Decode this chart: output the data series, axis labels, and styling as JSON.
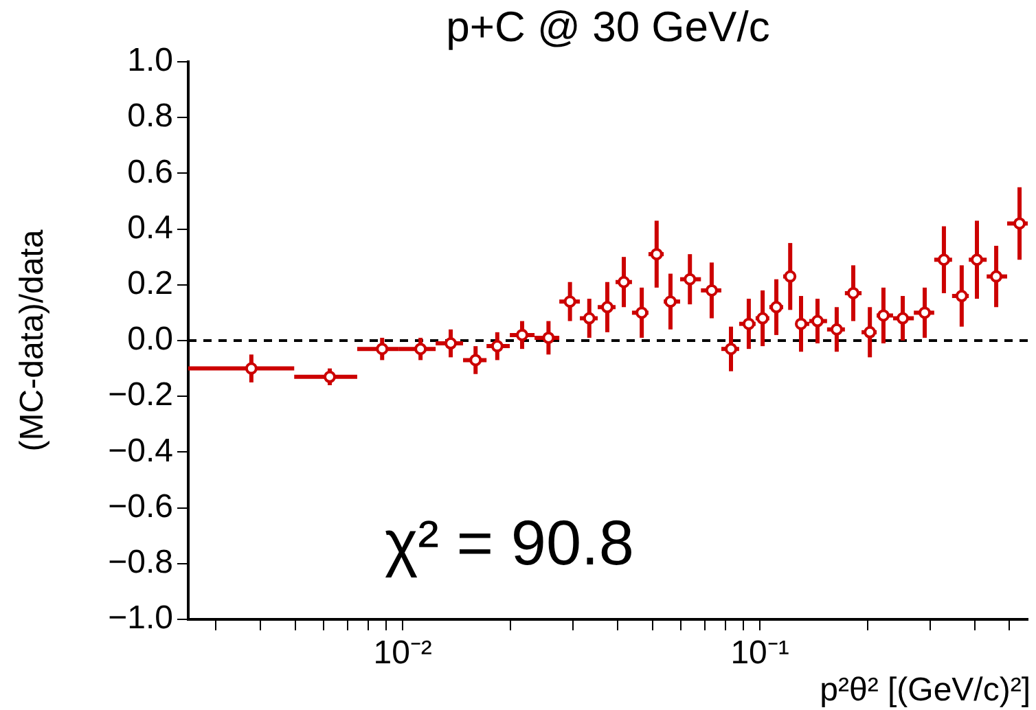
{
  "chart_data": {
    "type": "scatter",
    "title": "p+C @ 30 GeV/c",
    "xlabel": "p²θ² [(GeV/c)²]",
    "ylabel": "(MC-data)/data",
    "annotations": [
      "χ² = 90.8"
    ],
    "log": "x",
    "marker": "circle",
    "xlim": [
      0.00251,
      0.5623
    ],
    "ylim": [
      -1,
      1
    ],
    "xticks": [
      {
        "value": 0.003,
        "label": null
      },
      {
        "value": 0.004,
        "label": null
      },
      {
        "value": 0.005,
        "label": null
      },
      {
        "value": 0.006,
        "label": null
      },
      {
        "value": 0.007,
        "label": null
      },
      {
        "value": 0.008,
        "label": null
      },
      {
        "value": 0.009,
        "label": null
      },
      {
        "value": 0.01,
        "label": "10⁻²"
      },
      {
        "value": 0.02,
        "label": null
      },
      {
        "value": 0.03,
        "label": null
      },
      {
        "value": 0.04,
        "label": null
      },
      {
        "value": 0.05,
        "label": null
      },
      {
        "value": 0.06,
        "label": null
      },
      {
        "value": 0.07,
        "label": null
      },
      {
        "value": 0.08,
        "label": null
      },
      {
        "value": 0.09,
        "label": null
      },
      {
        "value": 0.1,
        "label": "10⁻¹"
      },
      {
        "value": 0.2,
        "label": null
      },
      {
        "value": 0.3,
        "label": null
      },
      {
        "value": 0.4,
        "label": null
      },
      {
        "value": 0.5,
        "label": null
      }
    ],
    "yticks": [
      {
        "value": -1,
        "label": "−1.0"
      },
      {
        "value": -0.8,
        "label": "−0.8"
      },
      {
        "value": -0.6,
        "label": "−0.6"
      },
      {
        "value": -0.4,
        "label": "−0.4"
      },
      {
        "value": -0.2,
        "label": "−0.2"
      },
      {
        "value": 0,
        "label": "0.0"
      },
      {
        "value": 0.2,
        "label": "0.2"
      },
      {
        "value": 0.4,
        "label": "0.4"
      },
      {
        "value": 0.6,
        "label": "0.6"
      },
      {
        "value": 0.8,
        "label": "0.8"
      },
      {
        "value": 1,
        "label": "1.0"
      }
    ],
    "ref_lines": [
      {
        "axis": "y",
        "value": 0,
        "color": "#000000",
        "line_style": "dashed"
      }
    ],
    "series": [
      {
        "color": "#cc0000",
        "x": [
          0.00377,
          0.00625,
          0.00876,
          0.01122,
          0.01363,
          0.016,
          0.0184,
          0.0216,
          0.0256,
          0.0294,
          0.0333,
          0.0374,
          0.0416,
          0.0467,
          0.0514,
          0.0562,
          0.0637,
          0.0733,
          0.083,
          0.0931,
          0.1018,
          0.1112,
          0.1216,
          0.1304,
          0.145,
          0.1641,
          0.1826,
          0.2032,
          0.2218,
          0.2512,
          0.2894,
          0.3275,
          0.3673,
          0.4052,
          0.4588,
          0.5333
        ],
        "values": [
          -0.1,
          -0.13,
          -0.03,
          -0.03,
          -0.01,
          -0.07,
          -0.02,
          0.02,
          0.01,
          0.14,
          0.08,
          0.12,
          0.21,
          0.1,
          0.31,
          0.14,
          0.22,
          0.18,
          -0.03,
          0.06,
          0.08,
          0.12,
          0.23,
          0.06,
          0.07,
          0.04,
          0.17,
          0.03,
          0.09,
          0.08,
          0.1,
          0.29,
          0.16,
          0.29,
          0.23,
          0.42
        ],
        "errors": [
          0.05,
          0.03,
          0.04,
          0.04,
          0.05,
          0.05,
          0.05,
          0.05,
          0.06,
          0.07,
          0.07,
          0.09,
          0.09,
          0.09,
          0.12,
          0.1,
          0.09,
          0.1,
          0.08,
          0.09,
          0.1,
          0.1,
          0.12,
          0.1,
          0.08,
          0.08,
          0.1,
          0.09,
          0.1,
          0.08,
          0.09,
          0.12,
          0.11,
          0.14,
          0.11,
          0.13
        ],
        "xerrors": [
          [
            0.00251,
            0.00497
          ],
          [
            0.00497,
            0.00746
          ],
          [
            0.00746,
            0.00974
          ],
          [
            0.00974,
            0.01237
          ],
          [
            0.01237,
            0.01476
          ],
          [
            0.01476,
            0.01717
          ],
          [
            0.01717,
            0.01995
          ],
          [
            0.01995,
            0.0234
          ],
          [
            0.0234,
            0.02745
          ],
          [
            0.02745,
            0.03134
          ],
          [
            0.03134,
            0.03516
          ],
          [
            0.03516,
            0.03945
          ],
          [
            0.03945,
            0.04385
          ],
          [
            0.04385,
            0.04877
          ],
          [
            0.04877,
            0.05381
          ],
          [
            0.05381,
            0.05981
          ],
          [
            0.05981,
            0.06839
          ],
          [
            0.06839,
            0.078
          ],
          [
            0.078,
            0.0875
          ],
          [
            0.0875,
            0.0973
          ],
          [
            0.0973,
            0.1063
          ],
          [
            0.1063,
            0.1162
          ],
          [
            0.1162,
            0.1259
          ],
          [
            0.1259,
            0.1375
          ],
          [
            0.1375,
            0.1542
          ],
          [
            0.1542,
            0.173
          ],
          [
            0.173,
            0.1926
          ],
          [
            0.1926,
            0.2123
          ],
          [
            0.2123,
            0.236
          ],
          [
            0.236,
            0.2698
          ],
          [
            0.2698,
            0.3077
          ],
          [
            0.3077,
            0.3452
          ],
          [
            0.3452,
            0.3845
          ],
          [
            0.3845,
            0.4315
          ],
          [
            0.4315,
            0.4924
          ],
          [
            0.4924,
            0.5623
          ]
        ]
      }
    ]
  }
}
